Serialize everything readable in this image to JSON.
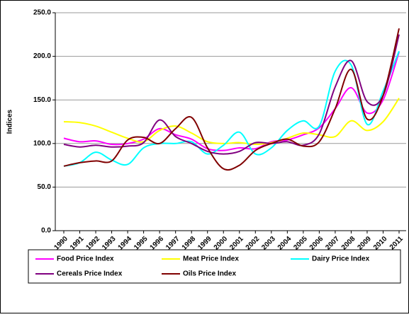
{
  "chart_data": {
    "type": "line",
    "y_label": "Indices",
    "categories": [
      "1990",
      "1991",
      "1992",
      "1993",
      "1994",
      "1995",
      "1996",
      "1997",
      "1998",
      "1999",
      "2000",
      "2001",
      "2002",
      "2003",
      "2004",
      "2005",
      "2006",
      "2007",
      "2008",
      "2009",
      "2010",
      "2011"
    ],
    "series": [
      {
        "name": "Food Price Index",
        "color": "#ff00ff",
        "values": [
          106,
          102,
          103,
          99,
          100,
          105,
          117,
          110,
          105,
          94,
          92,
          95,
          94,
          102,
          104,
          110,
          118,
          140,
          164,
          135,
          150,
          205
        ]
      },
      {
        "name": "Meat Price Index",
        "color": "#ffff00",
        "values": [
          125,
          124,
          120,
          113,
          106,
          102,
          115,
          120,
          112,
          102,
          100,
          101,
          99,
          101,
          106,
          112,
          110,
          108,
          126,
          115,
          125,
          152
        ]
      },
      {
        "name": "Dairy Price Index",
        "color": "#00ffff",
        "values": [
          74,
          78,
          90,
          81,
          76,
          95,
          100,
          100,
          102,
          88,
          98,
          113,
          88,
          95,
          115,
          126,
          120,
          183,
          190,
          122,
          160,
          206
        ]
      },
      {
        "name": "Cereals Price Index",
        "color": "#800080",
        "values": [
          99,
          96,
          98,
          96,
          97,
          101,
          127,
          108,
          100,
          91,
          88,
          91,
          101,
          100,
          102,
          98,
          111,
          165,
          195,
          148,
          155,
          225
        ]
      },
      {
        "name": "Oils Price Index",
        "color": "#800000",
        "values": [
          74,
          78,
          80,
          80,
          104,
          107,
          100,
          117,
          130,
          95,
          71,
          75,
          92,
          100,
          105,
          97,
          102,
          140,
          185,
          128,
          155,
          232
        ]
      }
    ],
    "ylim": [
      0,
      250
    ],
    "yticks": [
      {
        "value": 0,
        "label": "0.0"
      },
      {
        "value": 50,
        "label": "50.0"
      },
      {
        "value": 100,
        "label": "100.0"
      },
      {
        "value": 150,
        "label": "150.0"
      },
      {
        "value": 200,
        "label": "200.0"
      },
      {
        "value": 250,
        "label": "250.0"
      }
    ],
    "grid": true,
    "legend_position": "bottom"
  }
}
